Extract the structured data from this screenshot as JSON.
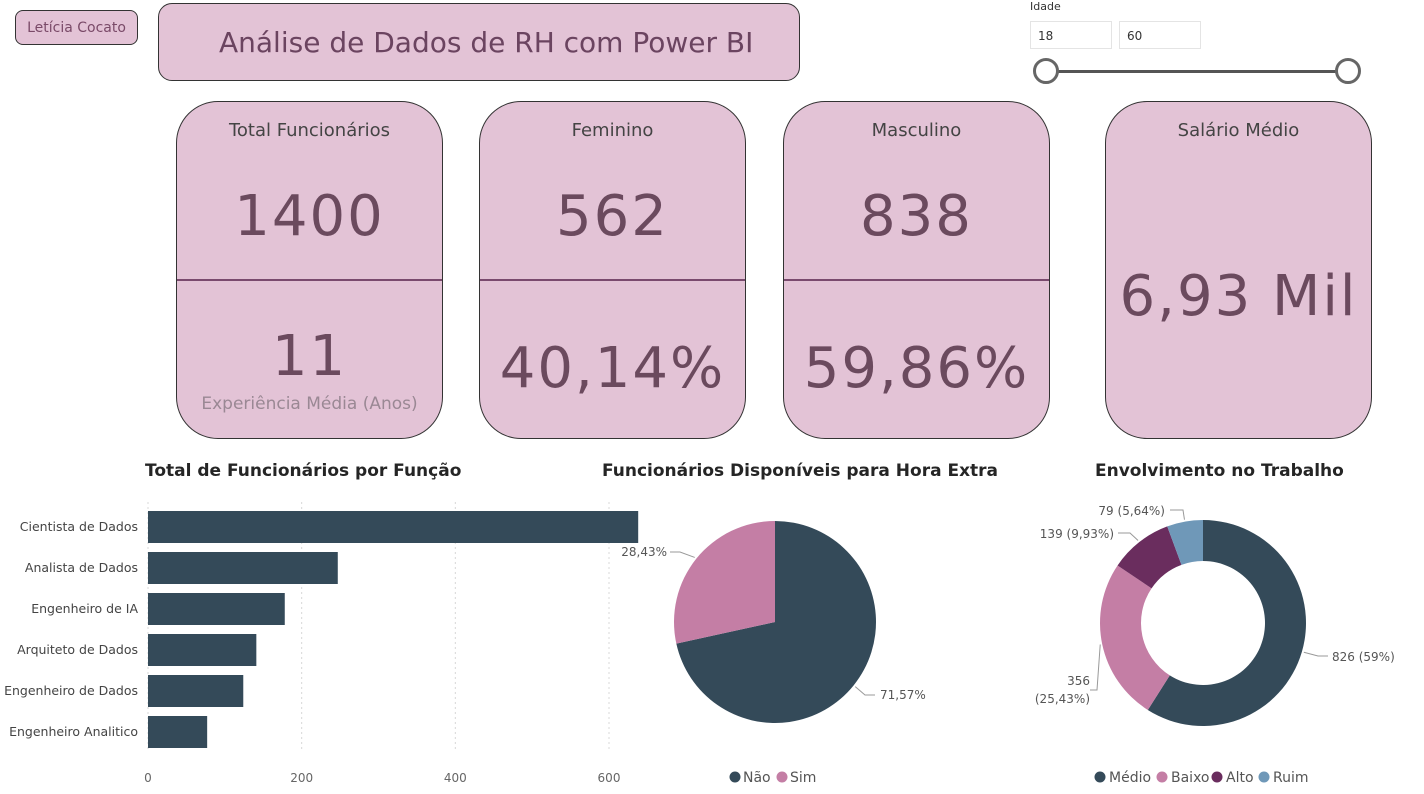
{
  "author_button": "Letícia Cocato",
  "page_title": "Análise de Dados de RH com Power BI",
  "age_slicer": {
    "label": "Idade",
    "min": "18",
    "max": "60"
  },
  "cards": {
    "total": {
      "title": "Total Funcionários",
      "value": "1400",
      "sub_value": "11",
      "sub_label": "Experiência Média (Anos)"
    },
    "female": {
      "title": "Feminino",
      "value": "562",
      "percent": "40,14%"
    },
    "male": {
      "title": "Masculino",
      "value": "838",
      "percent": "59,86%"
    },
    "salary": {
      "title": "Salário Médio",
      "value": "6,93 Mil"
    }
  },
  "colors": {
    "card_bg": "#e3c3d6",
    "dark": "#344a59",
    "pink": "#c47ea5",
    "purple": "#6a2d5e",
    "blue": "#6f98b8"
  },
  "chart_data": [
    {
      "type": "bar",
      "title": "Total de Funcionários por Função",
      "categories": [
        "Cientista de Dados",
        "Analista de Dados",
        "Engenheiro de IA",
        "Arquiteto de Dados",
        "Engenheiro de Dados",
        "Engenheiro Analitico"
      ],
      "values": [
        638,
        247,
        178,
        141,
        124,
        77
      ],
      "x_ticks": [
        "0",
        "200",
        "400",
        "600"
      ],
      "xlim": [
        0,
        700
      ],
      "grid": true
    },
    {
      "type": "pie",
      "title": "Funcionários Disponíveis para Hora Extra",
      "labels": [
        "Não",
        "Sim"
      ],
      "values": [
        71.57,
        28.43
      ],
      "data_labels": [
        "71,57%",
        "28,43%"
      ],
      "colors": [
        "#344a59",
        "#c47ea5"
      ],
      "legend": "bottom"
    },
    {
      "type": "pie",
      "variant": "donut",
      "title": "Envolvimento no Trabalho",
      "labels": [
        "Médio",
        "Baixo",
        "Alto",
        "Ruim"
      ],
      "values": [
        826,
        356,
        139,
        79
      ],
      "data_labels": [
        "826 (59%)",
        "356 (25,43%)",
        "139 (9,93%)",
        "79 (5,64%)"
      ],
      "colors": [
        "#344a59",
        "#c47ea5",
        "#6a2d5e",
        "#6f98b8"
      ],
      "legend": "bottom"
    }
  ]
}
